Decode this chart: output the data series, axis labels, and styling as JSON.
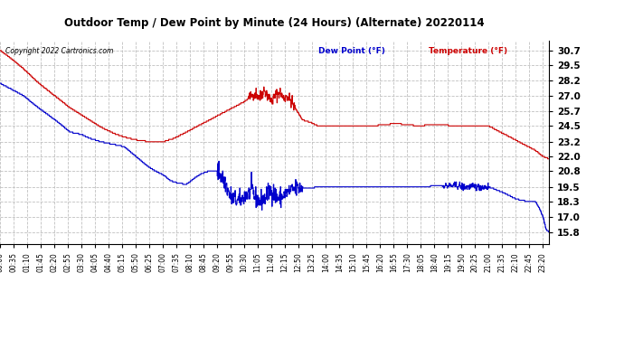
{
  "title": "Outdoor Temp / Dew Point by Minute (24 Hours) (Alternate) 20220114",
  "copyright": "Copyright 2022 Cartronics.com",
  "legend_dew": "Dew Point (°F)",
  "legend_temp": "Temperature (°F)",
  "temp_color": "#cc0000",
  "dew_color": "#0000cc",
  "background_color": "#ffffff",
  "grid_color": "#c0c0c0",
  "yticks": [
    15.8,
    17.0,
    18.3,
    19.5,
    20.8,
    22.0,
    23.2,
    24.5,
    25.7,
    27.0,
    28.2,
    29.5,
    30.7
  ],
  "ylim": [
    14.8,
    31.5
  ],
  "total_minutes": 1416,
  "xtick_interval": 35
}
